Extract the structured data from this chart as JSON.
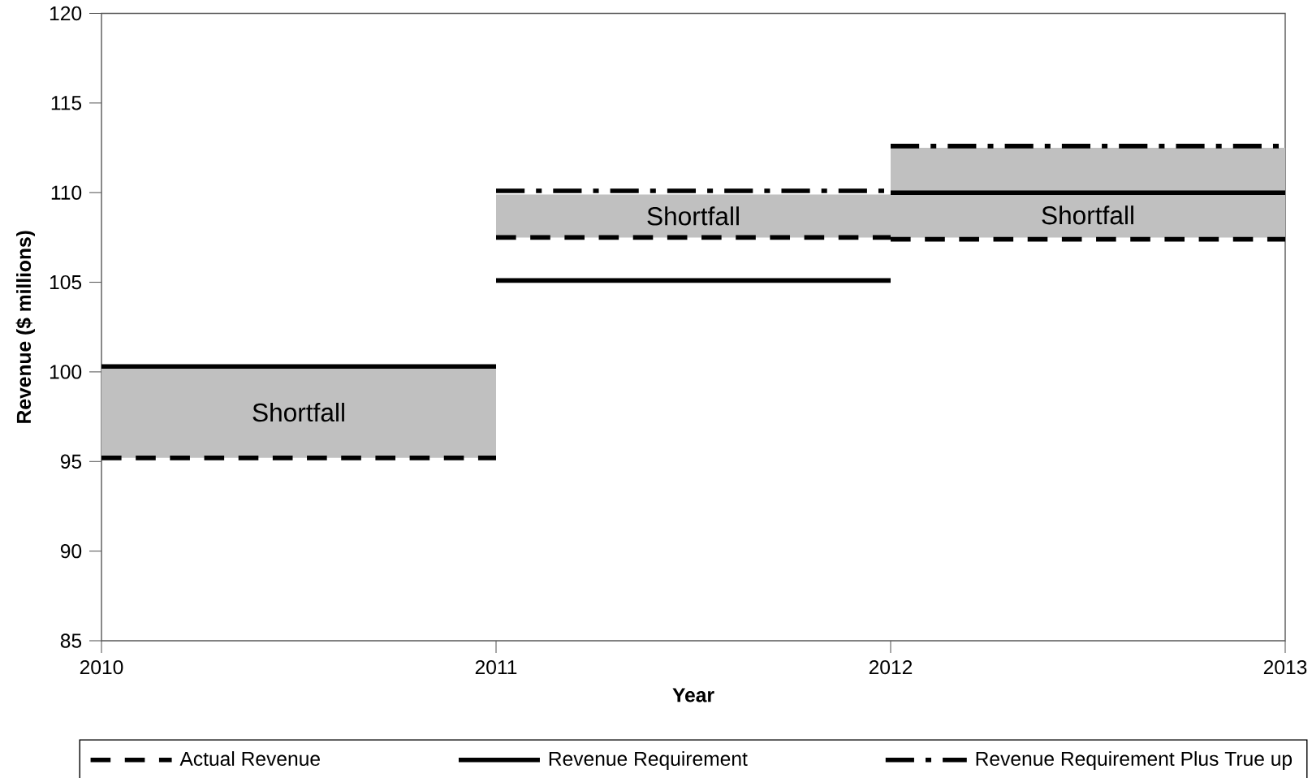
{
  "chart_data": {
    "type": "line",
    "xlabel": "Year",
    "ylabel": "Revenue ($ millions)",
    "xlim": [
      2010,
      2013
    ],
    "xticks": [
      2010,
      2011,
      2012,
      2013
    ],
    "ylim": [
      85,
      120
    ],
    "yticks": [
      85,
      90,
      95,
      100,
      105,
      110,
      115,
      120
    ],
    "grid": false,
    "legend": "bottom",
    "marker": "none",
    "series": [
      {
        "type": "bar",
        "color": "#c0c0c0",
        "x": [
          2010.5,
          2011.5,
          2012.5
        ],
        "base": [
          95.2,
          107.5,
          107.5
        ],
        "values": [
          5.1,
          2.4,
          5.0
        ]
      },
      {
        "name": "Actual Revenue",
        "color": "#000000",
        "line_style": "dashed",
        "x": [
          2010,
          2011,
          2011,
          2012,
          2012,
          2013
        ],
        "values": [
          95.2,
          95.2,
          107.5,
          107.5,
          107.4,
          107.4
        ]
      },
      {
        "name": "Revenue Requirement",
        "color": "#000000",
        "line_style": "solid",
        "x": [
          2010,
          2011,
          2011,
          2012,
          2012,
          2013
        ],
        "values": [
          100.3,
          100.3,
          105.1,
          105.1,
          110.0,
          110.0
        ]
      },
      {
        "name": "Revenue Requirement Plus True up",
        "color": "#000000",
        "line_style": "dashdot",
        "x": [
          2011,
          2012,
          2012,
          2013
        ],
        "values": [
          110.1,
          110.1,
          112.6,
          112.6
        ]
      }
    ],
    "annotations": [
      "Shortfall",
      "Shortfall",
      "Shortfall"
    ]
  }
}
